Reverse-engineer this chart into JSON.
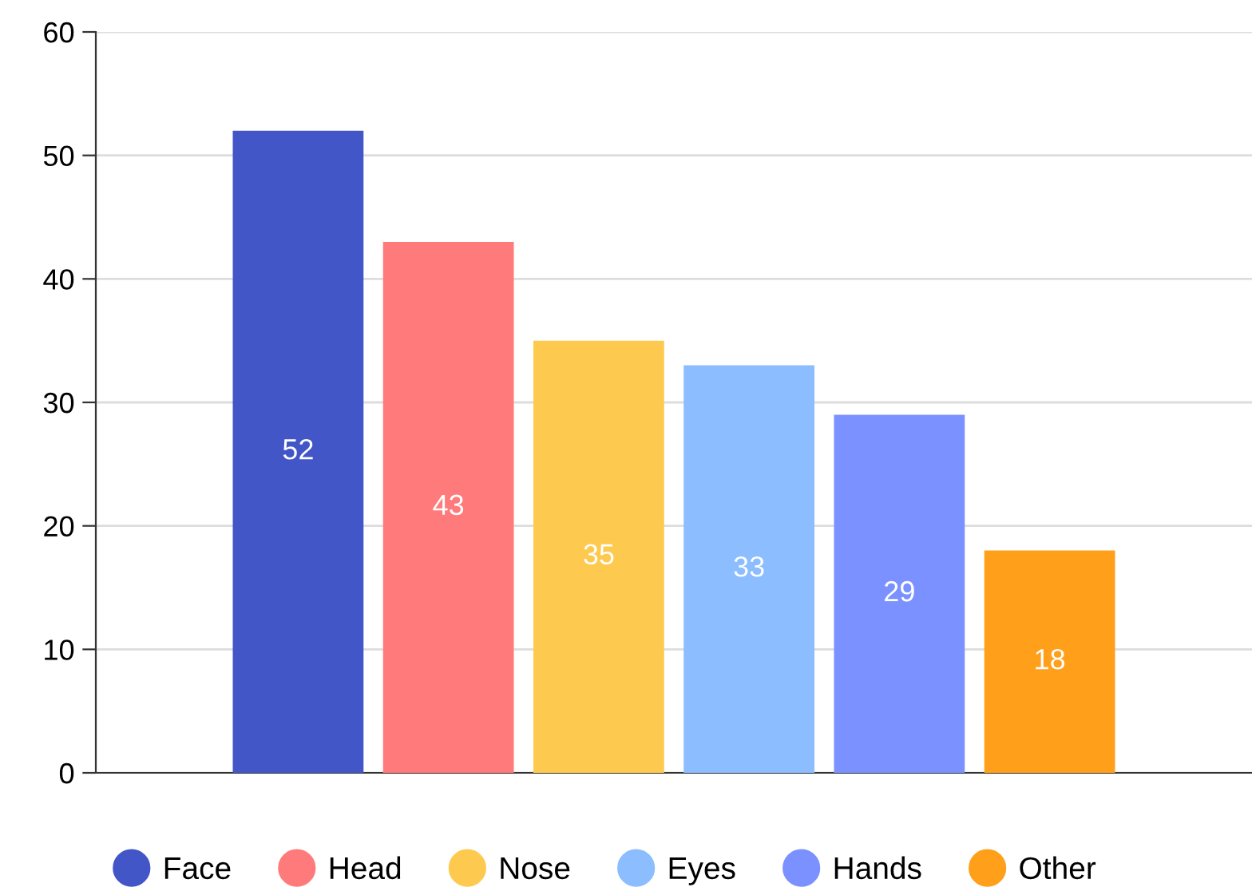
{
  "chart_data": {
    "type": "bar",
    "categories": [
      null
    ],
    "series": [
      {
        "name": "Face",
        "color": "#4356c8",
        "values": [
          52
        ]
      },
      {
        "name": "Head",
        "color": "#ff7b7b",
        "values": [
          43
        ]
      },
      {
        "name": "Nose",
        "color": "#fec94f",
        "values": [
          35
        ]
      },
      {
        "name": "Eyes",
        "color": "#8bbdff",
        "values": [
          33
        ]
      },
      {
        "name": "Hands",
        "color": "#7b91ff",
        "values": [
          29
        ]
      },
      {
        "name": "Other",
        "color": "#ff9f1a",
        "values": [
          18
        ]
      }
    ],
    "ylim": [
      0,
      60
    ],
    "yticks": [
      0,
      10,
      20,
      30,
      40,
      50,
      60
    ],
    "grid": "y",
    "legend": "bottom",
    "data_labels": true,
    "marker": "circle"
  }
}
